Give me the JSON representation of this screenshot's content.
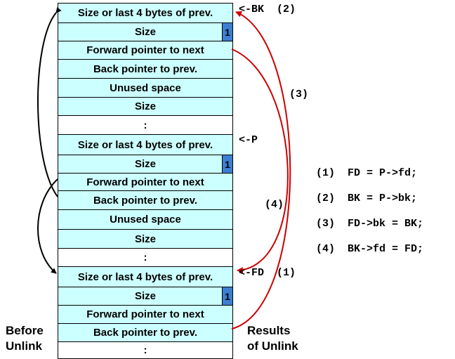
{
  "chunks": [
    {
      "rows": [
        {
          "label": "Size or last 4 bytes of prev."
        },
        {
          "label": "Size",
          "flag": "1"
        },
        {
          "label": "Forward pointer to next"
        },
        {
          "label": "Back pointer to prev."
        },
        {
          "label": "Unused space"
        },
        {
          "label": "Size"
        },
        {
          "label": ":",
          "blank": true
        }
      ]
    },
    {
      "rows": [
        {
          "label": "Size or last 4 bytes of prev."
        },
        {
          "label": "Size",
          "flag": "1"
        },
        {
          "label": "Forward pointer to next"
        },
        {
          "label": "Back pointer to prev."
        },
        {
          "label": "Unused space"
        },
        {
          "label": "Size"
        },
        {
          "label": ":",
          "blank": true
        }
      ]
    },
    {
      "rows": [
        {
          "label": "Size or last 4 bytes of prev."
        },
        {
          "label": "Size",
          "flag": "1"
        },
        {
          "label": "Forward pointer to next"
        },
        {
          "label": "Back pointer to prev."
        },
        {
          "label": ":",
          "blank": true
        }
      ]
    }
  ],
  "pointer_labels": {
    "bk": "<-BK  (2)",
    "p": "<-P",
    "fd": "<-FD  (1)",
    "step3": "(3)",
    "step4": "(4)"
  },
  "code": [
    "(1)  FD = P->fd;",
    "(2)  BK = P->bk;",
    "(3)  FD->bk = BK;",
    "(4)  BK->fd = FD;"
  ],
  "captions": {
    "before": "Before\nUnlink",
    "after": "Results\nof Unlink"
  },
  "colors": {
    "cell": "#ccffff",
    "flag": "#3b7fd1",
    "before_arrows": "#000000",
    "result_arrows": "#cc0000"
  }
}
